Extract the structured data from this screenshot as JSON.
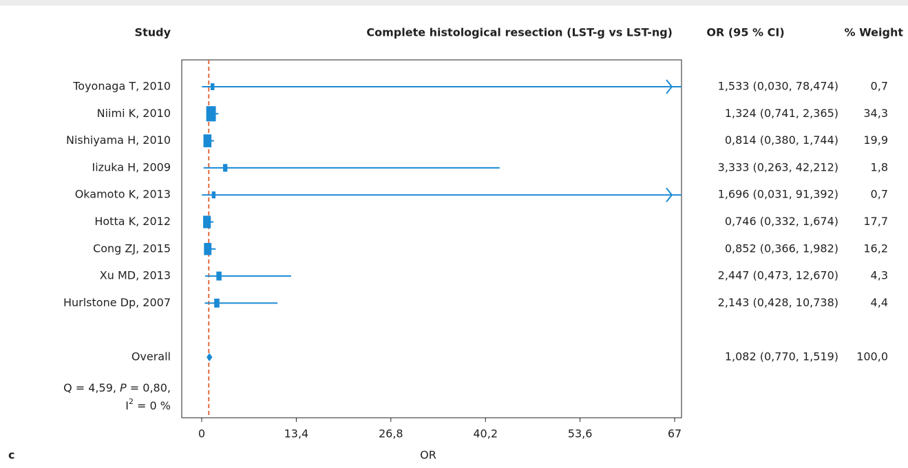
{
  "chart_data": {
    "type": "forest",
    "panel_label": "c",
    "headers": {
      "study": "Study",
      "plot": "Complete histological resection (LST-g vs LST-ng)",
      "ci": "OR (95 % CI)",
      "weight": "% Weight"
    },
    "x_label": "OR",
    "xlim": [
      0,
      67
    ],
    "xticks": [
      0,
      {
        "value": 13.4,
        "label": "13,4"
      },
      {
        "value": 26.8,
        "label": "26,8"
      },
      {
        "value": 40.2,
        "label": "40,2"
      },
      {
        "value": 53.6,
        "label": "53,6"
      },
      67
    ],
    "reference_line": 1,
    "color": "#1a8ad4",
    "reference_color": "#e06a3c",
    "studies": [
      {
        "name": "Toyonaga T, 2010",
        "or": 1.533,
        "lower": 0.03,
        "upper": 78.474,
        "ci_label": "1,533 (0,030, 78,474)",
        "weight": 0.7,
        "weight_label": "0,7"
      },
      {
        "name": "Niimi K, 2010",
        "or": 1.324,
        "lower": 0.741,
        "upper": 2.365,
        "ci_label": "1,324 (0,741, 2,365)",
        "weight": 34.3,
        "weight_label": "34,3"
      },
      {
        "name": "Nishiyama H, 2010",
        "or": 0.814,
        "lower": 0.38,
        "upper": 1.744,
        "ci_label": "0,814 (0,380, 1,744)",
        "weight": 19.9,
        "weight_label": "19,9"
      },
      {
        "name": "Iizuka H, 2009",
        "or": 3.333,
        "lower": 0.263,
        "upper": 42.212,
        "ci_label": "3,333 (0,263, 42,212)",
        "weight": 1.8,
        "weight_label": "1,8"
      },
      {
        "name": "Okamoto K, 2013",
        "or": 1.696,
        "lower": 0.031,
        "upper": 91.392,
        "ci_label": "1,696 (0,031, 91,392)",
        "weight": 0.7,
        "weight_label": "0,7"
      },
      {
        "name": "Hotta K, 2012",
        "or": 0.746,
        "lower": 0.332,
        "upper": 1.674,
        "ci_label": "0,746 (0,332, 1,674)",
        "weight": 17.7,
        "weight_label": "17,7"
      },
      {
        "name": "Cong ZJ, 2015",
        "or": 0.852,
        "lower": 0.366,
        "upper": 1.982,
        "ci_label": "0,852 (0,366, 1,982)",
        "weight": 16.2,
        "weight_label": "16,2"
      },
      {
        "name": "Xu MD, 2013",
        "or": 2.447,
        "lower": 0.473,
        "upper": 12.67,
        "ci_label": "2,447 (0,473, 12,670)",
        "weight": 4.3,
        "weight_label": "4,3"
      },
      {
        "name": "Hurlstone Dp, 2007",
        "or": 2.143,
        "lower": 0.428,
        "upper": 10.738,
        "ci_label": "2,143 (0,428, 10,738)",
        "weight": 4.4,
        "weight_label": "4,4"
      }
    ],
    "overall": {
      "name": "Overall",
      "or": 1.082,
      "lower": 0.77,
      "upper": 1.519,
      "ci_label": "1,082 (0,770, 1,519)",
      "weight": 100.0,
      "weight_label": "100,0"
    },
    "heterogeneity": {
      "line1": [
        "Q = 4,59, ",
        "P",
        " = 0,80,"
      ],
      "line2": [
        "I",
        "2",
        " = 0 %"
      ]
    }
  }
}
